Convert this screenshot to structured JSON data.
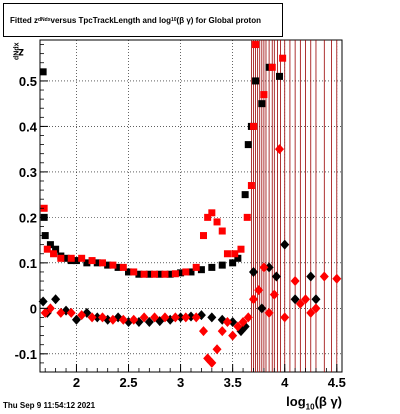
{
  "title": {
    "part1": "Fitted  z",
    "sub1": "dNdx",
    "part2": "  versus TpcTrackLength and log",
    "sub2": "10",
    "part3": "(β  γ) for Global proton"
  },
  "ylabel": {
    "main": "z",
    "sub": "dNdx"
  },
  "xlabel": {
    "main": "log",
    "sub": "10",
    "tail": "(β γ)"
  },
  "timestamp": "Thu Sep  9 11:54:12 2021",
  "colors": {
    "black_series": "#000000",
    "red_series": "#ff0000",
    "error_bar": "#990000"
  },
  "chart_data": {
    "type": "scatter",
    "xlim": [
      1.65,
      4.55
    ],
    "ylim": [
      -0.14,
      0.59
    ],
    "xticks": [
      "2",
      "2.5",
      "3",
      "3.5",
      "4",
      "4.5"
    ],
    "xtick_values": [
      2,
      2.5,
      3,
      3.5,
      4,
      4.5
    ],
    "yticks": [
      "-0.1",
      "0",
      "0.1",
      "0.2",
      "0.3",
      "0.4",
      "0.5"
    ],
    "ytick_values": [
      -0.1,
      0,
      0.1,
      0.2,
      0.3,
      0.4,
      0.5
    ],
    "grid": true,
    "series": [
      {
        "marker": "square",
        "color": "#000000",
        "points": [
          [
            1.68,
            0.52
          ],
          [
            1.69,
            0.2
          ],
          [
            1.7,
            0.16
          ],
          [
            1.75,
            0.14
          ],
          [
            1.8,
            0.13
          ],
          [
            1.85,
            0.115
          ],
          [
            1.9,
            0.11
          ],
          [
            1.95,
            0.105
          ],
          [
            2.0,
            0.105
          ],
          [
            2.1,
            0.1
          ],
          [
            2.2,
            0.1
          ],
          [
            2.3,
            0.095
          ],
          [
            2.4,
            0.09
          ],
          [
            2.5,
            0.08
          ],
          [
            2.6,
            0.075
          ],
          [
            2.7,
            0.075
          ],
          [
            2.8,
            0.075
          ],
          [
            2.9,
            0.075
          ],
          [
            3.0,
            0.078
          ],
          [
            3.1,
            0.08
          ],
          [
            3.2,
            0.085
          ],
          [
            3.3,
            0.09
          ],
          [
            3.4,
            0.095
          ],
          [
            3.5,
            0.1
          ],
          [
            3.55,
            0.11
          ],
          [
            3.62,
            0.25
          ],
          [
            3.65,
            0.36
          ],
          [
            3.68,
            0.4
          ],
          [
            3.72,
            0.5
          ],
          [
            3.78,
            0.45
          ],
          [
            3.85,
            0.53
          ],
          [
            3.95,
            0.51
          ]
        ]
      },
      {
        "marker": "square",
        "color": "#ff0000",
        "points": [
          [
            1.69,
            0.22
          ],
          [
            1.72,
            0.13
          ],
          [
            1.78,
            0.12
          ],
          [
            1.85,
            0.11
          ],
          [
            1.95,
            0.11
          ],
          [
            2.05,
            0.11
          ],
          [
            2.15,
            0.105
          ],
          [
            2.25,
            0.1
          ],
          [
            2.35,
            0.095
          ],
          [
            2.45,
            0.09
          ],
          [
            2.55,
            0.08
          ],
          [
            2.65,
            0.075
          ],
          [
            2.75,
            0.075
          ],
          [
            2.85,
            0.075
          ],
          [
            2.95,
            0.076
          ],
          [
            3.05,
            0.08
          ],
          [
            3.15,
            0.09
          ],
          [
            3.22,
            0.16
          ],
          [
            3.26,
            0.2
          ],
          [
            3.3,
            0.21
          ],
          [
            3.35,
            0.19
          ],
          [
            3.4,
            0.17
          ],
          [
            3.45,
            0.12
          ],
          [
            3.52,
            0.12
          ],
          [
            3.58,
            0.13
          ],
          [
            3.64,
            0.2
          ],
          [
            3.68,
            0.27
          ],
          [
            3.7,
            0.4
          ],
          [
            3.72,
            0.58
          ],
          [
            3.8,
            0.47
          ],
          [
            3.88,
            0.53
          ],
          [
            3.98,
            0.55
          ]
        ]
      },
      {
        "marker": "diamond",
        "color": "#000000",
        "points": [
          [
            1.68,
            0.015
          ],
          [
            1.72,
            -0.01
          ],
          [
            1.8,
            0.02
          ],
          [
            1.9,
            -0.005
          ],
          [
            2.0,
            -0.025
          ],
          [
            2.1,
            -0.01
          ],
          [
            2.2,
            -0.02
          ],
          [
            2.3,
            -0.025
          ],
          [
            2.4,
            -0.02
          ],
          [
            2.5,
            -0.03
          ],
          [
            2.6,
            -0.03
          ],
          [
            2.7,
            -0.03
          ],
          [
            2.8,
            -0.028
          ],
          [
            2.9,
            -0.025
          ],
          [
            3.0,
            -0.02
          ],
          [
            3.1,
            -0.018
          ],
          [
            3.2,
            -0.015
          ],
          [
            3.3,
            -0.02
          ],
          [
            3.4,
            -0.025
          ],
          [
            3.5,
            -0.03
          ],
          [
            3.58,
            -0.05
          ],
          [
            3.62,
            -0.04
          ],
          [
            3.7,
            0.08
          ],
          [
            3.78,
            0.0
          ],
          [
            3.85,
            0.09
          ],
          [
            3.92,
            0.07
          ],
          [
            4.0,
            0.14
          ],
          [
            4.1,
            0.02
          ],
          [
            4.25,
            0.07
          ],
          [
            4.3,
            0.02
          ]
        ]
      },
      {
        "marker": "diamond",
        "color": "#ff0000",
        "points": [
          [
            1.7,
            -0.01
          ],
          [
            1.75,
            0.0
          ],
          [
            1.85,
            -0.01
          ],
          [
            1.95,
            -0.01
          ],
          [
            2.05,
            -0.015
          ],
          [
            2.15,
            -0.02
          ],
          [
            2.25,
            -0.02
          ],
          [
            2.35,
            -0.025
          ],
          [
            2.45,
            -0.025
          ],
          [
            2.55,
            -0.025
          ],
          [
            2.65,
            -0.02
          ],
          [
            2.75,
            -0.02
          ],
          [
            2.85,
            -0.02
          ],
          [
            2.95,
            -0.02
          ],
          [
            3.05,
            -0.02
          ],
          [
            3.15,
            -0.02
          ],
          [
            3.22,
            -0.05
          ],
          [
            3.26,
            -0.11
          ],
          [
            3.3,
            -0.12
          ],
          [
            3.35,
            -0.09
          ],
          [
            3.4,
            -0.05
          ],
          [
            3.45,
            -0.03
          ],
          [
            3.5,
            -0.06
          ],
          [
            3.55,
            -0.04
          ],
          [
            3.6,
            -0.03
          ],
          [
            3.65,
            -0.02
          ],
          [
            3.7,
            0.02
          ],
          [
            3.75,
            0.04
          ],
          [
            3.8,
            0.09
          ],
          [
            3.85,
            -0.01
          ],
          [
            3.9,
            0.03
          ],
          [
            3.95,
            0.35
          ],
          [
            4.0,
            -0.02
          ],
          [
            4.1,
            0.06
          ],
          [
            4.15,
            0.01
          ],
          [
            4.2,
            0.02
          ],
          [
            4.25,
            -0.01
          ],
          [
            4.3,
            0.0
          ],
          [
            4.38,
            0.07
          ],
          [
            4.5,
            0.065
          ]
        ]
      }
    ],
    "error_bar_x": [
      3.68,
      3.7,
      3.72,
      3.74,
      3.76,
      3.78,
      3.8,
      3.82,
      3.85,
      3.88,
      3.9,
      3.93,
      3.96,
      4.0,
      4.05,
      4.1,
      4.15,
      4.2,
      4.25,
      4.3,
      4.38,
      4.45,
      4.5
    ]
  }
}
